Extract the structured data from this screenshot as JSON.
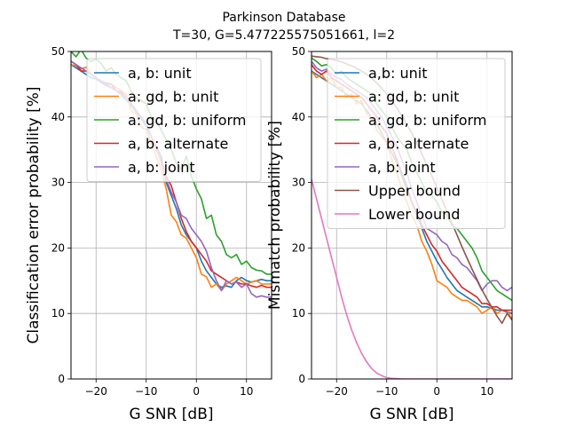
{
  "figure": {
    "title_line1": "Parkinson Database",
    "title_line2": "T=30, G=5.477225575051661, l=2"
  },
  "chart_data": [
    {
      "type": "line",
      "xlabel": "G SNR [dB]",
      "ylabel": "Classification error probability [%]",
      "xlim": [
        -25,
        15
      ],
      "ylim": [
        0,
        50
      ],
      "xticks": [
        -20,
        -10,
        0,
        10
      ],
      "xtick_labels": [
        "−20",
        "−10",
        "0",
        "10"
      ],
      "yticks": [
        0,
        10,
        20,
        30,
        40,
        50
      ],
      "grid": true,
      "legend_position": "upper-right",
      "x": [
        -25,
        -24,
        -23,
        -22,
        -21,
        -20,
        -19,
        -18,
        -17,
        -16,
        -15,
        -14,
        -13,
        -12,
        -11,
        -10,
        -9,
        -8,
        -7,
        -6,
        -5,
        -4,
        -3,
        -2,
        -1,
        0,
        1,
        2,
        3,
        4,
        5,
        6,
        7,
        8,
        9,
        10,
        11,
        12,
        13,
        14,
        15
      ],
      "series": [
        {
          "name": "a, b: unit",
          "color": "#1f77b4",
          "values": [
            48,
            47.5,
            47,
            46.5,
            46,
            45.8,
            45.3,
            44.8,
            44.5,
            44,
            43.4,
            42.6,
            41.8,
            40.8,
            39.8,
            38.5,
            37,
            35.5,
            34,
            30,
            28,
            26,
            23.5,
            22,
            21,
            20,
            18,
            16.5,
            15.5,
            14.5,
            14,
            14.2,
            14,
            15,
            15.5,
            15,
            14.8,
            15,
            15.2,
            15,
            15
          ]
        },
        {
          "name": "a: gd, b: unit",
          "color": "#ff7f0e",
          "values": [
            48,
            47.8,
            47.3,
            47.6,
            46.5,
            46,
            45.5,
            45,
            45,
            44.5,
            44,
            43.5,
            41,
            40.5,
            38.5,
            38,
            36,
            34,
            32,
            29,
            25,
            24,
            22,
            21.5,
            20,
            18.5,
            16,
            15.6,
            14,
            14.5,
            13.5,
            14.5,
            15,
            15.5,
            15,
            14.5,
            14.8,
            15,
            14.5,
            14.5,
            14.5
          ]
        },
        {
          "name": "a: gd, b: uniform",
          "color": "#2ca02c",
          "values": [
            50,
            49.2,
            50.3,
            49,
            48.5,
            48.8,
            48.2,
            47,
            47.5,
            46.5,
            46,
            45.5,
            44,
            43,
            42.5,
            42,
            40,
            39.5,
            38,
            36.5,
            35,
            33,
            32,
            34,
            31,
            29,
            27.5,
            24.5,
            25,
            22,
            21,
            19,
            18.5,
            19,
            17.5,
            18,
            17,
            16.6,
            16.5,
            16,
            16
          ]
        },
        {
          "name": "a, b: alternate",
          "color": "#d62728",
          "values": [
            48.5,
            48,
            47,
            47,
            46.5,
            46,
            45.5,
            45.2,
            45,
            44,
            43.8,
            43,
            42,
            41,
            40,
            39,
            37,
            35,
            33.5,
            31,
            29.5,
            27,
            24.5,
            22.5,
            21,
            20,
            19,
            18,
            16.5,
            16,
            15.5,
            15,
            14.5,
            14.8,
            14.5,
            14.5,
            14.2,
            14,
            14.3,
            14,
            14
          ]
        },
        {
          "name": "a, b: joint",
          "color": "#9467bd",
          "values": [
            48.5,
            48,
            47.5,
            47,
            46.5,
            46,
            45.5,
            45,
            44.5,
            44,
            43.5,
            43,
            42,
            41,
            40,
            39,
            37,
            35.5,
            33,
            30.5,
            28.5,
            27,
            25,
            24.5,
            23,
            22,
            21,
            19.5,
            17,
            15,
            13.5,
            15,
            14.5,
            14.8,
            14,
            14.5,
            13,
            12.5,
            12.7,
            12.5,
            12.5
          ]
        }
      ]
    },
    {
      "type": "line",
      "xlabel": "G SNR [dB]",
      "ylabel": "Mismatch probability [%]",
      "xlim": [
        -25,
        15
      ],
      "ylim": [
        0,
        50
      ],
      "xticks": [
        -20,
        -10,
        0,
        10
      ],
      "xtick_labels": [
        "−20",
        "−10",
        "0",
        "10"
      ],
      "yticks": [
        0,
        10,
        20,
        30,
        40,
        50
      ],
      "grid": true,
      "legend_position": "upper-right",
      "x": [
        -25,
        -24,
        -23,
        -22,
        -21,
        -20,
        -19,
        -18,
        -17,
        -16,
        -15,
        -14,
        -13,
        -12,
        -11,
        -10,
        -9,
        -8,
        -7,
        -6,
        -5,
        -4,
        -3,
        -2,
        -1,
        0,
        1,
        2,
        3,
        4,
        5,
        6,
        7,
        8,
        9,
        10,
        11,
        12,
        13,
        14,
        15
      ],
      "series": [
        {
          "name": "a,b: unit",
          "color": "#1f77b4",
          "values": [
            47,
            46.5,
            46,
            45.5,
            45,
            44.5,
            44,
            43.5,
            43,
            42.5,
            42,
            41,
            40,
            39,
            37.5,
            36,
            34.5,
            33,
            31,
            29,
            27,
            25,
            23,
            21,
            19.5,
            18,
            16.8,
            15.5,
            14.5,
            13.5,
            13,
            12.5,
            12,
            11.5,
            11,
            11,
            10.8,
            10.5,
            10.5,
            10.2,
            10
          ]
        },
        {
          "name": "a: gd, b: unit",
          "color": "#ff7f0e",
          "values": [
            47,
            46,
            46.5,
            45.5,
            46,
            44.5,
            44.5,
            43,
            43.5,
            42,
            42.5,
            40.5,
            40,
            38,
            37,
            36,
            33.5,
            31.5,
            29,
            27,
            25,
            23.5,
            21,
            19.5,
            17.5,
            15,
            14.5,
            14,
            13,
            12.5,
            12,
            12,
            11.5,
            11,
            10,
            10.5,
            11,
            10,
            10.5,
            10.5,
            9
          ]
        },
        {
          "name": "a: gd, b: uniform",
          "color": "#2ca02c",
          "values": [
            49,
            48.5,
            47.8,
            48,
            47.5,
            46.5,
            47,
            46,
            45.5,
            45,
            44.5,
            44,
            43.5,
            42,
            41,
            40,
            38.5,
            37,
            36,
            35,
            33,
            31.5,
            30,
            28.5,
            28,
            27,
            25.5,
            25,
            23.5,
            23,
            22,
            21,
            20,
            18.5,
            16.5,
            15.5,
            14.5,
            13.5,
            13,
            12.5,
            12
          ]
        },
        {
          "name": "a, b: alternate",
          "color": "#d62728",
          "values": [
            48,
            47,
            46.5,
            47,
            46,
            45.5,
            45,
            44.5,
            44,
            43.5,
            43,
            42,
            41,
            40,
            38.5,
            37.5,
            35.5,
            33.5,
            31.5,
            29.5,
            27,
            25.5,
            23.5,
            22,
            20.5,
            19.5,
            18,
            17,
            16,
            15,
            14,
            13.5,
            13,
            12.5,
            11.5,
            11.5,
            11,
            11,
            10.5,
            10.5,
            10.5
          ]
        },
        {
          "name": "a, b: joint",
          "color": "#9467bd",
          "values": [
            48.5,
            47.5,
            47,
            47.3,
            46.5,
            46,
            45.7,
            45,
            44.5,
            44,
            43.5,
            43,
            42,
            41,
            40,
            38.5,
            37,
            35.5,
            33.5,
            31.5,
            29,
            27,
            25,
            23,
            22.5,
            22,
            21,
            20.5,
            19,
            18.5,
            17.5,
            17,
            16,
            15,
            13.5,
            14.5,
            15,
            15,
            14,
            13.5,
            14
          ]
        },
        {
          "name": "Upper bound",
          "color": "#8c564b",
          "values": [
            49.3,
            49.2,
            49.1,
            48.9,
            48.8,
            48.6,
            48.4,
            48.1,
            47.8,
            47.4,
            47,
            46.5,
            45.9,
            45.2,
            44.4,
            43.5,
            42.5,
            41.4,
            40.2,
            38.9,
            37.5,
            36,
            34.4,
            32.7,
            31,
            29.2,
            27.4,
            25.6,
            23.8,
            22,
            20.2,
            18.5,
            16.8,
            15.2,
            13.6,
            12.2,
            10.9,
            9.6,
            8.5,
            10,
            9
          ]
        },
        {
          "name": "Lower bound",
          "color": "#e377c2",
          "values": [
            30.5,
            27.5,
            24.5,
            21.5,
            18.5,
            15.5,
            12.5,
            9.8,
            7.5,
            5.5,
            3.9,
            2.6,
            1.6,
            0.9,
            0.5,
            0.2,
            0.1,
            0.05,
            0,
            0,
            0,
            0,
            0,
            0,
            0,
            0,
            0,
            0,
            0,
            0,
            0,
            0,
            0,
            0,
            0,
            0,
            0,
            0,
            0,
            0,
            0
          ]
        }
      ]
    }
  ]
}
